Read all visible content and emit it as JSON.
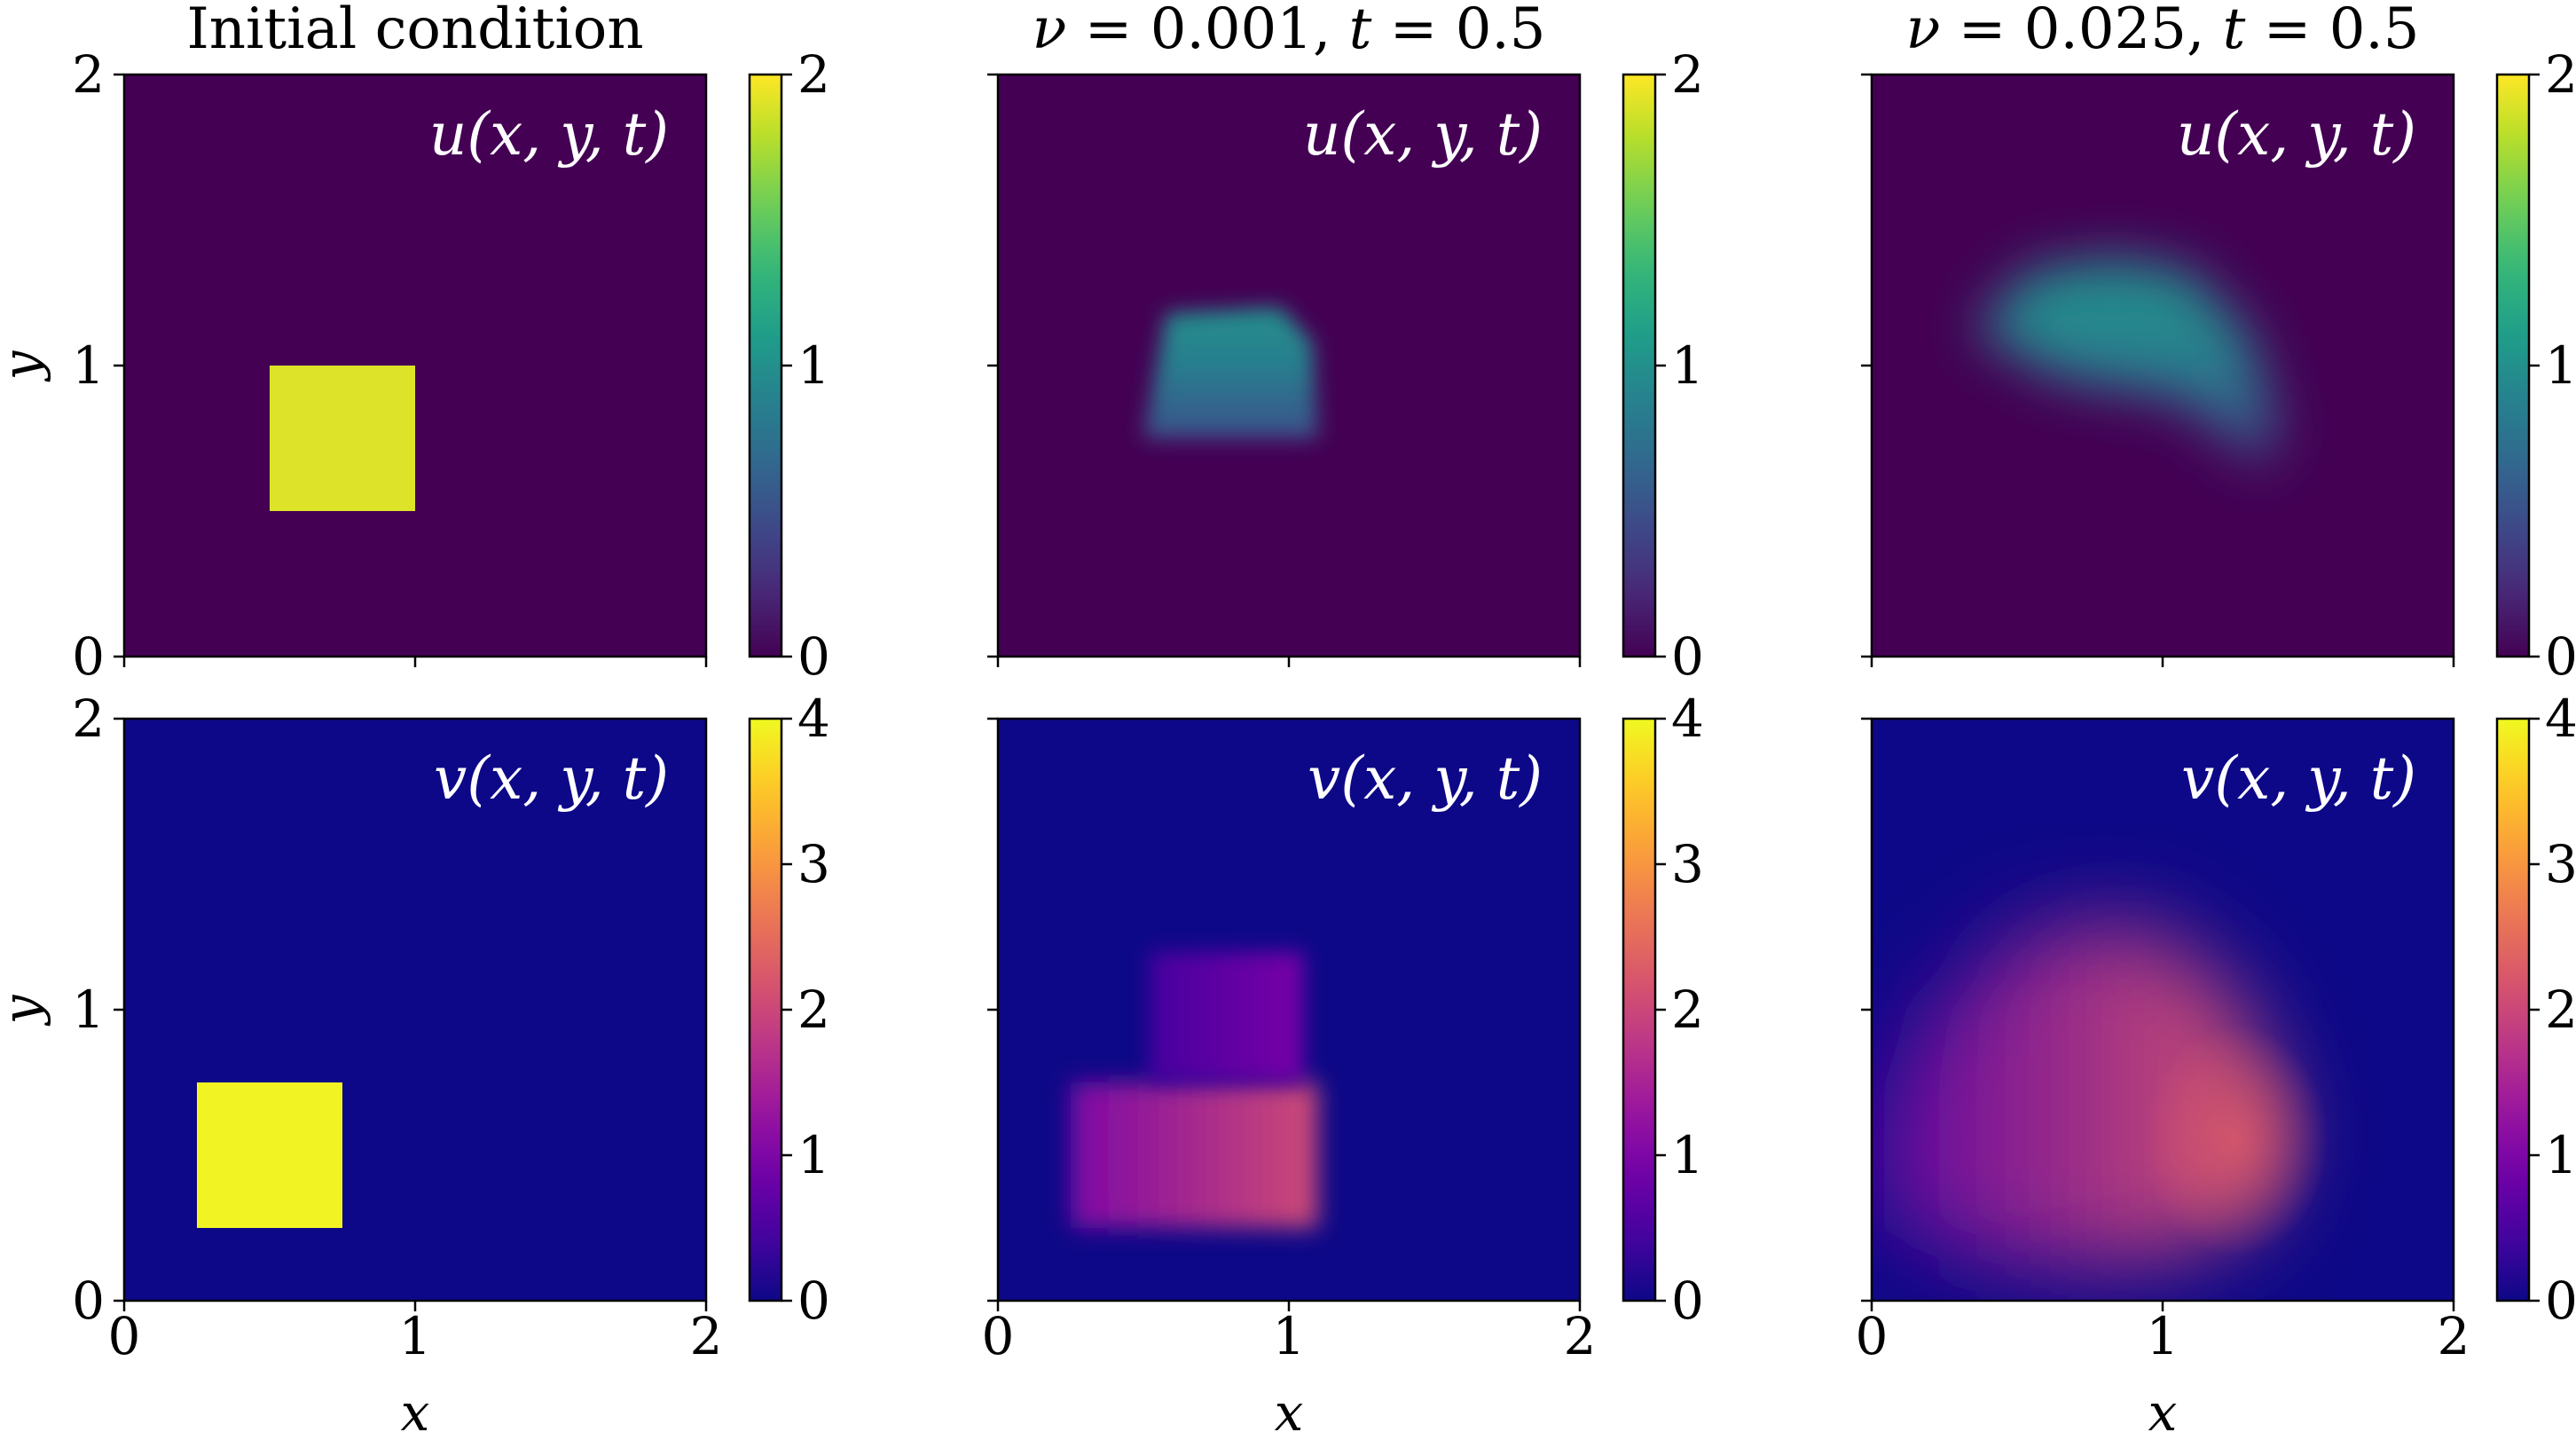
{
  "figure": {
    "column_titles": [
      {
        "text": "Initial condition",
        "latex": false
      },
      {
        "text": "ν = 0.001, t = 0.5",
        "latex": true
      },
      {
        "text": "ν = 0.025, t = 0.5",
        "latex": true
      }
    ],
    "row_labels": [
      "u(x, y, t)",
      "v(x, y, t)"
    ],
    "xlabel": "x",
    "ylabel": "y"
  },
  "chart_data": {
    "type": "heatmap",
    "domain": {
      "x": [
        0,
        2
      ],
      "y": [
        0,
        2
      ]
    },
    "x_ticks": [
      "0",
      "1",
      "2"
    ],
    "y_ticks": [
      "0",
      "1",
      "2"
    ],
    "rows": [
      {
        "field": "u(x, y, t)",
        "colormap": "viridis",
        "colorbar": {
          "range": [
            0,
            2
          ],
          "ticks": [
            "0",
            "1",
            "2"
          ]
        },
        "background_value": 0,
        "panels": [
          {
            "shapes": [
              {
                "kind": "rect",
                "x": [
                  0.5,
                  1.0
                ],
                "y": [
                  0.5,
                  1.0
                ],
                "value": 1.9,
                "blur": 0
              }
            ]
          },
          {
            "shapes": [
              {
                "kind": "blob",
                "points": [
                  [
                    0.5,
                    0.75
                  ],
                  [
                    0.58,
                    1.18
                  ],
                  [
                    0.97,
                    1.2
                  ],
                  [
                    1.08,
                    1.08
                  ],
                  [
                    1.1,
                    0.75
                  ]
                ],
                "value": 0.85,
                "value_top": 1.0,
                "value_bottom": 0.5,
                "blur": 0.035
              }
            ]
          },
          {
            "shapes": [
              {
                "kind": "blob",
                "points": [
                  [
                    0.35,
                    1.12
                  ],
                  [
                    0.55,
                    1.33
                  ],
                  [
                    0.85,
                    1.37
                  ],
                  [
                    1.1,
                    1.32
                  ],
                  [
                    1.3,
                    1.1
                  ],
                  [
                    1.4,
                    0.78
                  ],
                  [
                    1.35,
                    0.65
                  ],
                  [
                    1.05,
                    0.88
                  ],
                  [
                    0.65,
                    0.95
                  ]
                ],
                "value": 0.9,
                "value_top": 1.0,
                "value_bottom": 0.45,
                "blur": 0.09
              }
            ]
          }
        ]
      },
      {
        "field": "v(x, y, t)",
        "colormap": "plasma",
        "colorbar": {
          "range": [
            0,
            4
          ],
          "ticks": [
            "0",
            "1",
            "2",
            "3",
            "4"
          ]
        },
        "background_value": 0,
        "panels": [
          {
            "shapes": [
              {
                "kind": "rect",
                "x": [
                  0.25,
                  0.75
                ],
                "y": [
                  0.25,
                  0.75
                ],
                "value": 3.95,
                "blur": 0
              }
            ]
          },
          {
            "shapes": [
              {
                "kind": "rect",
                "x": [
                  0.25,
                  1.1
                ],
                "y": [
                  0.25,
                  0.75
                ],
                "value_left": 1.0,
                "value_right": 2.05,
                "blur": 0.04
              },
              {
                "kind": "rect",
                "x": [
                  0.52,
                  1.05
                ],
                "y": [
                  0.75,
                  1.2
                ],
                "value_left": 0.45,
                "value_right": 0.95,
                "blur": 0.035
              }
            ]
          },
          {
            "shapes": [
              {
                "kind": "blob",
                "points": [
                  [
                    0.0,
                    0.6
                  ],
                  [
                    0.2,
                    1.0
                  ],
                  [
                    0.55,
                    1.28
                  ],
                  [
                    0.95,
                    1.3
                  ],
                  [
                    1.25,
                    1.05
                  ],
                  [
                    1.42,
                    0.6
                  ],
                  [
                    1.32,
                    0.28
                  ],
                  [
                    0.95,
                    0.12
                  ],
                  [
                    0.45,
                    0.12
                  ],
                  [
                    0.05,
                    0.25
                  ]
                ],
                "value_left": 0.7,
                "value_right": 2.25,
                "peak": [
                  1.25,
                  0.55
                ],
                "blur": 0.15
              }
            ]
          }
        ]
      }
    ]
  }
}
